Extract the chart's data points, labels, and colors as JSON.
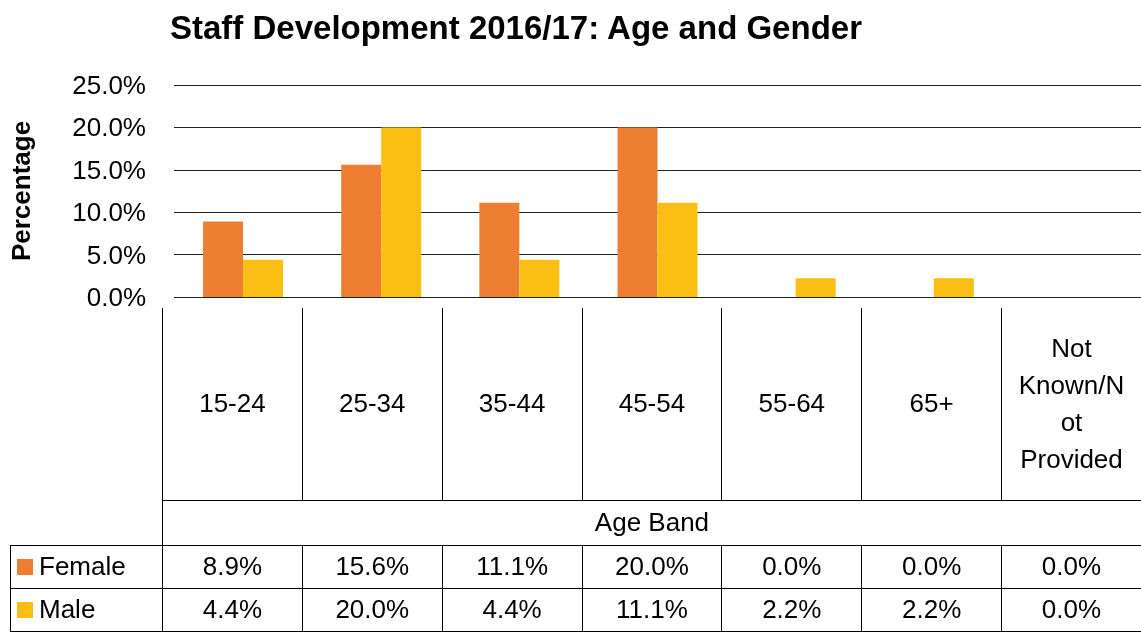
{
  "chart_data": {
    "type": "bar",
    "title": "Staff Development 2016/17: Age and Gender",
    "xlabel": "Age Band",
    "ylabel": "Percentage",
    "categories": [
      "15-24",
      "25-34",
      "35-44",
      "45-54",
      "55-64",
      "65+",
      "Not Known/Not Provided"
    ],
    "series": [
      {
        "name": "Female",
        "color": "#ed7d31",
        "values": [
          8.9,
          15.6,
          11.1,
          20.0,
          0.0,
          0.0,
          0.0
        ],
        "value_labels": [
          "8.9%",
          "15.6%",
          "11.1%",
          "20.0%",
          "0.0%",
          "0.0%",
          "0.0%"
        ]
      },
      {
        "name": "Male",
        "color": "#fbbf14",
        "values": [
          4.4,
          20.0,
          4.4,
          11.1,
          2.2,
          2.2,
          0.0
        ],
        "value_labels": [
          "4.4%",
          "20.0%",
          "4.4%",
          "11.1%",
          "2.2%",
          "2.2%",
          "0.0%"
        ]
      }
    ],
    "ylim": [
      0,
      25
    ],
    "yticks": [
      {
        "value": 0,
        "label": "0.0%"
      },
      {
        "value": 5,
        "label": "5.0%"
      },
      {
        "value": 10,
        "label": "10.0%"
      },
      {
        "value": 15,
        "label": "15.0%"
      },
      {
        "value": 20,
        "label": "20.0%"
      },
      {
        "value": 25,
        "label": "25.0%"
      }
    ],
    "grid": "y",
    "legend": "bottom"
  }
}
